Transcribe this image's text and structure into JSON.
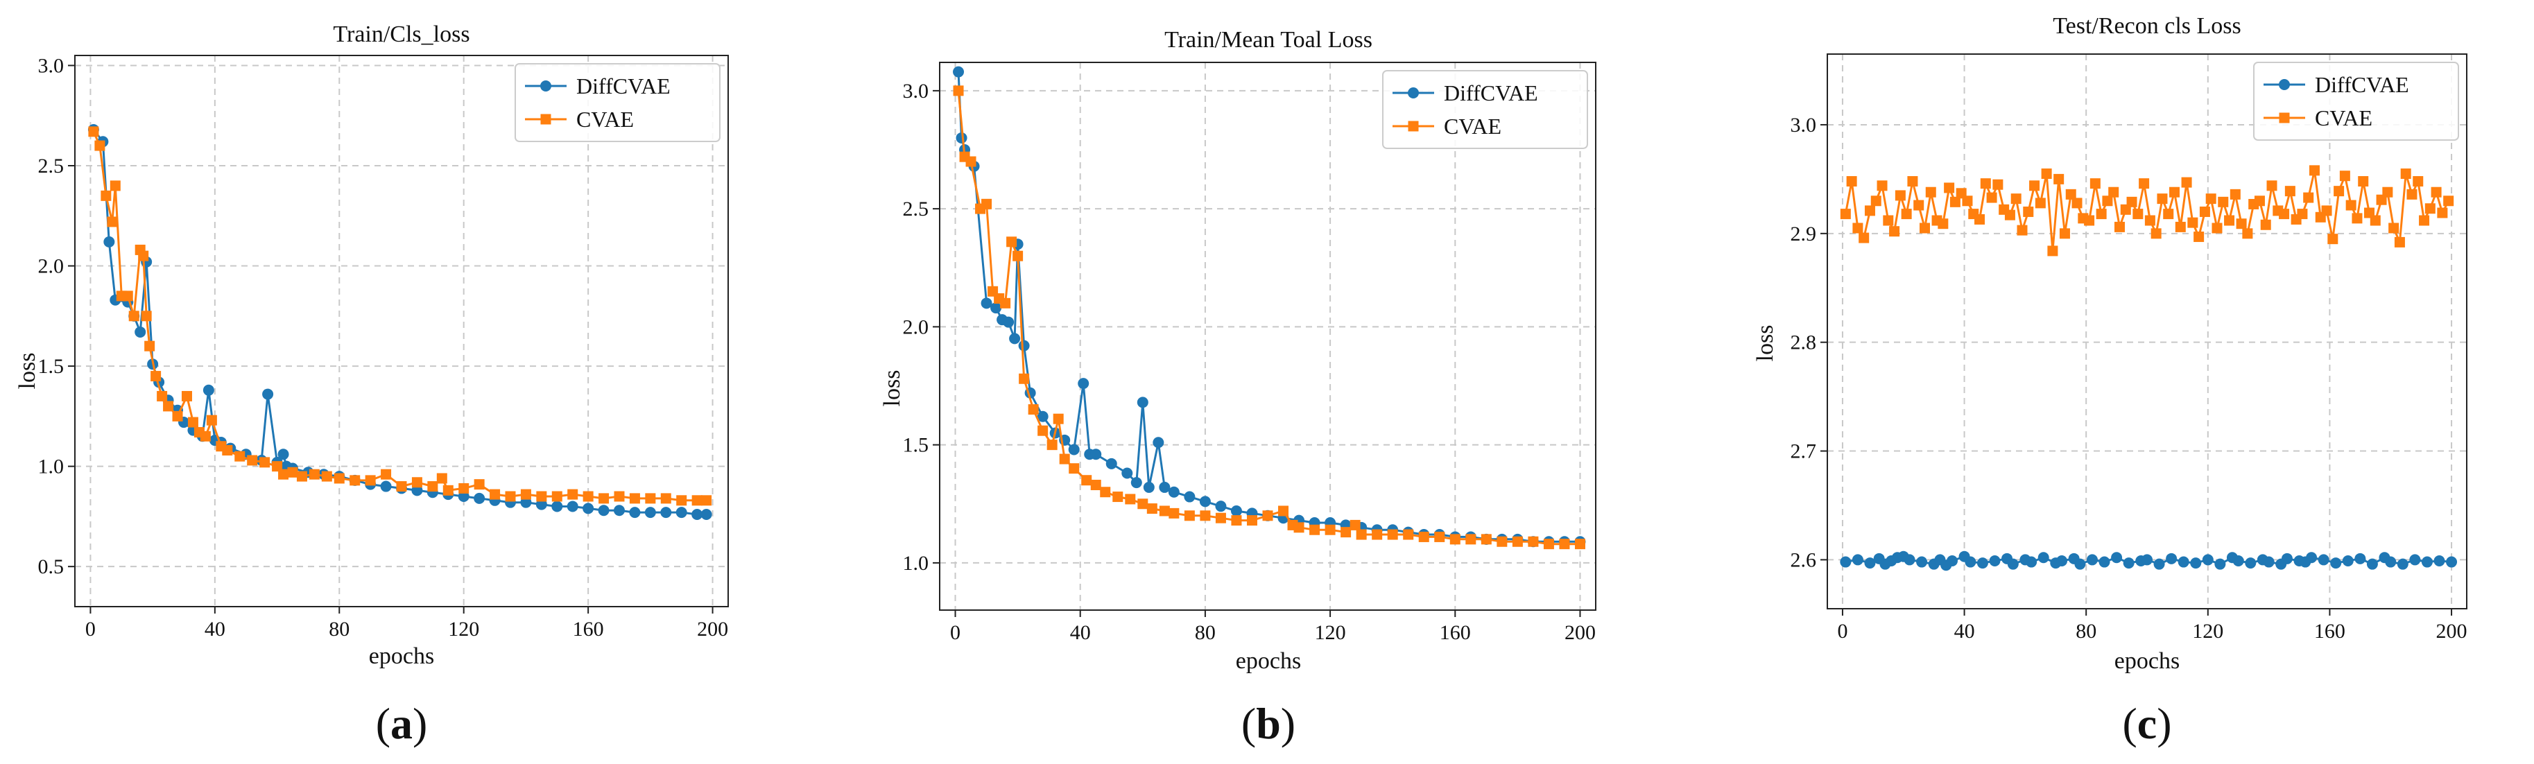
{
  "colors": {
    "diff": "#1f77b4",
    "cvae": "#ff7f0e",
    "grid": "#c8c8c8"
  },
  "chart_data": [
    {
      "type": "line",
      "caption": "a",
      "title": "Train/Cls_loss",
      "xlabel": "epochs",
      "ylabel": "loss",
      "xlim": [
        -5,
        205
      ],
      "ylim": [
        0.3,
        3.05
      ],
      "xticks": [
        0,
        40,
        80,
        120,
        160,
        200
      ],
      "yticks": [
        0.5,
        1.0,
        1.5,
        2.0,
        2.5,
        3.0
      ],
      "ytick_labels": [
        "0.5",
        "1.0",
        "1.5",
        "2.0",
        "2.5",
        "3.0"
      ],
      "legend": "upper right",
      "series": [
        {
          "name": "DiffCVAE",
          "key": "diff",
          "marker": "circle",
          "x": [
            1,
            4,
            6,
            8,
            12,
            14,
            16,
            18,
            20,
            22,
            25,
            28,
            30,
            33,
            36,
            38,
            40,
            42,
            45,
            50,
            55,
            57,
            60,
            62,
            63,
            65,
            70,
            75,
            80,
            85,
            90,
            95,
            100,
            105,
            110,
            115,
            120,
            125,
            130,
            135,
            140,
            145,
            150,
            155,
            160,
            165,
            170,
            175,
            180,
            185,
            190,
            195,
            198
          ],
          "y": [
            2.68,
            2.62,
            2.12,
            1.83,
            1.82,
            1.75,
            1.67,
            2.02,
            1.51,
            1.42,
            1.33,
            1.28,
            1.22,
            1.18,
            1.15,
            1.38,
            1.13,
            1.12,
            1.09,
            1.06,
            1.03,
            1.36,
            1.02,
            1.06,
            1.0,
            0.99,
            0.97,
            0.96,
            0.95,
            0.93,
            0.91,
            0.9,
            0.89,
            0.88,
            0.87,
            0.86,
            0.85,
            0.84,
            0.83,
            0.82,
            0.82,
            0.81,
            0.8,
            0.8,
            0.79,
            0.78,
            0.78,
            0.77,
            0.77,
            0.77,
            0.77,
            0.76,
            0.76
          ]
        },
        {
          "name": "CVAE",
          "key": "cvae",
          "marker": "square",
          "x": [
            1,
            3,
            5,
            7,
            8,
            10,
            12,
            14,
            16,
            17,
            18,
            19,
            21,
            23,
            25,
            28,
            31,
            33,
            35,
            37,
            39,
            42,
            44,
            48,
            52,
            56,
            60,
            62,
            65,
            68,
            72,
            76,
            80,
            85,
            90,
            95,
            100,
            105,
            110,
            113,
            115,
            120,
            125,
            130,
            135,
            140,
            145,
            150,
            155,
            160,
            165,
            170,
            175,
            180,
            185,
            190,
            195,
            198
          ],
          "y": [
            2.67,
            2.6,
            2.35,
            2.22,
            2.4,
            1.85,
            1.85,
            1.75,
            2.08,
            2.05,
            1.75,
            1.6,
            1.45,
            1.35,
            1.3,
            1.25,
            1.35,
            1.22,
            1.17,
            1.15,
            1.23,
            1.1,
            1.08,
            1.05,
            1.03,
            1.02,
            1.0,
            0.96,
            0.97,
            0.95,
            0.96,
            0.95,
            0.94,
            0.93,
            0.93,
            0.96,
            0.9,
            0.92,
            0.9,
            0.94,
            0.88,
            0.89,
            0.91,
            0.86,
            0.85,
            0.86,
            0.85,
            0.85,
            0.86,
            0.85,
            0.84,
            0.85,
            0.84,
            0.84,
            0.84,
            0.83,
            0.83,
            0.83
          ]
        }
      ]
    },
    {
      "type": "line",
      "caption": "b",
      "title": "Train/Mean Toal Loss",
      "xlabel": "epochs",
      "ylabel": "loss",
      "xlim": [
        -5,
        205
      ],
      "ylim": [
        0.8,
        3.12
      ],
      "xticks": [
        0,
        40,
        80,
        120,
        160,
        200
      ],
      "yticks": [
        1.0,
        1.5,
        2.0,
        2.5,
        3.0
      ],
      "ytick_labels": [
        "1.0",
        "1.5",
        "2.0",
        "2.5",
        "3.0"
      ],
      "legend": "upper right",
      "series": [
        {
          "name": "DiffCVAE",
          "key": "diff",
          "marker": "circle",
          "x": [
            1,
            2,
            3,
            6,
            10,
            13,
            15,
            17,
            19,
            20,
            22,
            24,
            28,
            32,
            35,
            38,
            41,
            43,
            45,
            50,
            55,
            58,
            60,
            62,
            65,
            67,
            70,
            75,
            80,
            85,
            90,
            95,
            100,
            105,
            110,
            115,
            120,
            125,
            130,
            135,
            140,
            145,
            150,
            155,
            160,
            165,
            170,
            175,
            180,
            185,
            190,
            195,
            200
          ],
          "y": [
            3.08,
            2.8,
            2.75,
            2.68,
            2.1,
            2.08,
            2.03,
            2.02,
            1.95,
            2.35,
            1.92,
            1.72,
            1.62,
            1.55,
            1.52,
            1.48,
            1.76,
            1.46,
            1.46,
            1.42,
            1.38,
            1.34,
            1.68,
            1.32,
            1.51,
            1.32,
            1.3,
            1.28,
            1.26,
            1.24,
            1.22,
            1.21,
            1.2,
            1.19,
            1.18,
            1.17,
            1.17,
            1.16,
            1.15,
            1.14,
            1.14,
            1.13,
            1.12,
            1.12,
            1.11,
            1.11,
            1.1,
            1.1,
            1.1,
            1.09,
            1.09,
            1.09,
            1.09
          ]
        },
        {
          "name": "CVAE",
          "key": "cvae",
          "marker": "square",
          "x": [
            1,
            3,
            5,
            8,
            10,
            12,
            14,
            16,
            18,
            20,
            22,
            25,
            28,
            31,
            33,
            35,
            38,
            42,
            45,
            48,
            52,
            56,
            60,
            63,
            67,
            70,
            75,
            80,
            85,
            90,
            95,
            100,
            105,
            108,
            110,
            115,
            120,
            125,
            128,
            130,
            135,
            140,
            145,
            150,
            155,
            160,
            165,
            170,
            175,
            180,
            185,
            190,
            195,
            200
          ],
          "y": [
            3.0,
            2.72,
            2.7,
            2.5,
            2.52,
            2.15,
            2.12,
            2.1,
            2.36,
            2.3,
            1.78,
            1.65,
            1.56,
            1.5,
            1.61,
            1.44,
            1.4,
            1.35,
            1.33,
            1.3,
            1.28,
            1.27,
            1.25,
            1.23,
            1.22,
            1.21,
            1.2,
            1.2,
            1.19,
            1.18,
            1.18,
            1.2,
            1.22,
            1.16,
            1.15,
            1.14,
            1.14,
            1.13,
            1.16,
            1.12,
            1.12,
            1.12,
            1.12,
            1.11,
            1.11,
            1.1,
            1.1,
            1.1,
            1.09,
            1.09,
            1.09,
            1.08,
            1.08,
            1.08
          ]
        }
      ]
    },
    {
      "type": "line",
      "caption": "c",
      "title": "Test/Recon cls Loss",
      "xlabel": "epochs",
      "ylabel": "loss",
      "xlim": [
        -5,
        205
      ],
      "ylim": [
        2.555,
        3.065
      ],
      "xticks": [
        0,
        40,
        80,
        120,
        160,
        200
      ],
      "yticks": [
        2.6,
        2.7,
        2.8,
        2.9,
        3.0
      ],
      "ytick_labels": [
        "2.6",
        "2.7",
        "2.8",
        "2.9",
        "3.0"
      ],
      "legend": "upper right",
      "series": [
        {
          "name": "DiffCVAE",
          "key": "diff",
          "marker": "circle",
          "x": [
            1,
            5,
            9,
            12,
            14,
            16,
            18,
            20,
            22,
            26,
            30,
            32,
            34,
            36,
            40,
            42,
            46,
            50,
            54,
            56,
            60,
            62,
            66,
            70,
            72,
            76,
            78,
            82,
            86,
            90,
            94,
            98,
            100,
            104,
            108,
            112,
            116,
            120,
            124,
            128,
            130,
            134,
            138,
            140,
            144,
            146,
            150,
            152,
            154,
            158,
            162,
            166,
            170,
            174,
            178,
            180,
            184,
            188,
            192,
            196,
            200
          ],
          "y": [
            2.598,
            2.6,
            2.597,
            2.601,
            2.596,
            2.599,
            2.602,
            2.603,
            2.6,
            2.598,
            2.596,
            2.6,
            2.595,
            2.599,
            2.603,
            2.598,
            2.597,
            2.599,
            2.601,
            2.596,
            2.6,
            2.598,
            2.602,
            2.597,
            2.599,
            2.601,
            2.596,
            2.6,
            2.598,
            2.602,
            2.597,
            2.599,
            2.6,
            2.596,
            2.601,
            2.598,
            2.597,
            2.6,
            2.596,
            2.602,
            2.599,
            2.597,
            2.6,
            2.598,
            2.596,
            2.601,
            2.599,
            2.598,
            2.602,
            2.6,
            2.597,
            2.599,
            2.601,
            2.596,
            2.602,
            2.598,
            2.596,
            2.6,
            2.598,
            2.599,
            2.598
          ]
        },
        {
          "name": "CVAE",
          "key": "cvae",
          "marker": "square",
          "x": [
            1,
            3,
            5,
            7,
            9,
            11,
            13,
            15,
            17,
            19,
            21,
            23,
            25,
            27,
            29,
            31,
            33,
            35,
            37,
            39,
            41,
            43,
            45,
            47,
            49,
            51,
            53,
            55,
            57,
            59,
            61,
            63,
            65,
            67,
            69,
            71,
            73,
            75,
            77,
            79,
            81,
            83,
            85,
            87,
            89,
            91,
            93,
            95,
            97,
            99,
            101,
            103,
            105,
            107,
            109,
            111,
            113,
            115,
            117,
            119,
            121,
            123,
            125,
            127,
            129,
            131,
            133,
            135,
            137,
            139,
            141,
            143,
            145,
            147,
            149,
            151,
            153,
            155,
            157,
            159,
            161,
            163,
            165,
            167,
            169,
            171,
            173,
            175,
            177,
            179,
            181,
            183,
            185,
            187,
            189,
            191,
            193,
            195,
            197,
            199
          ],
          "y": [
            2.918,
            2.948,
            2.905,
            2.896,
            2.921,
            2.93,
            2.944,
            2.912,
            2.902,
            2.935,
            2.918,
            2.948,
            2.926,
            2.905,
            2.938,
            2.912,
            2.909,
            2.942,
            2.929,
            2.937,
            2.93,
            2.918,
            2.913,
            2.946,
            2.933,
            2.945,
            2.922,
            2.917,
            2.932,
            2.903,
            2.92,
            2.944,
            2.928,
            2.955,
            2.884,
            2.95,
            2.9,
            2.936,
            2.928,
            2.914,
            2.912,
            2.946,
            2.918,
            2.93,
            2.938,
            2.906,
            2.922,
            2.929,
            2.918,
            2.946,
            2.912,
            2.9,
            2.932,
            2.918,
            2.938,
            2.906,
            2.947,
            2.91,
            2.897,
            2.92,
            2.932,
            2.905,
            2.929,
            2.912,
            2.936,
            2.909,
            2.9,
            2.927,
            2.93,
            2.908,
            2.944,
            2.921,
            2.918,
            2.939,
            2.913,
            2.918,
            2.933,
            2.958,
            2.915,
            2.921,
            2.895,
            2.939,
            2.953,
            2.926,
            2.914,
            2.948,
            2.919,
            2.912,
            2.931,
            2.938,
            2.905,
            2.892,
            2.955,
            2.936,
            2.948,
            2.912,
            2.923,
            2.938,
            2.919,
            2.93
          ]
        }
      ]
    }
  ]
}
